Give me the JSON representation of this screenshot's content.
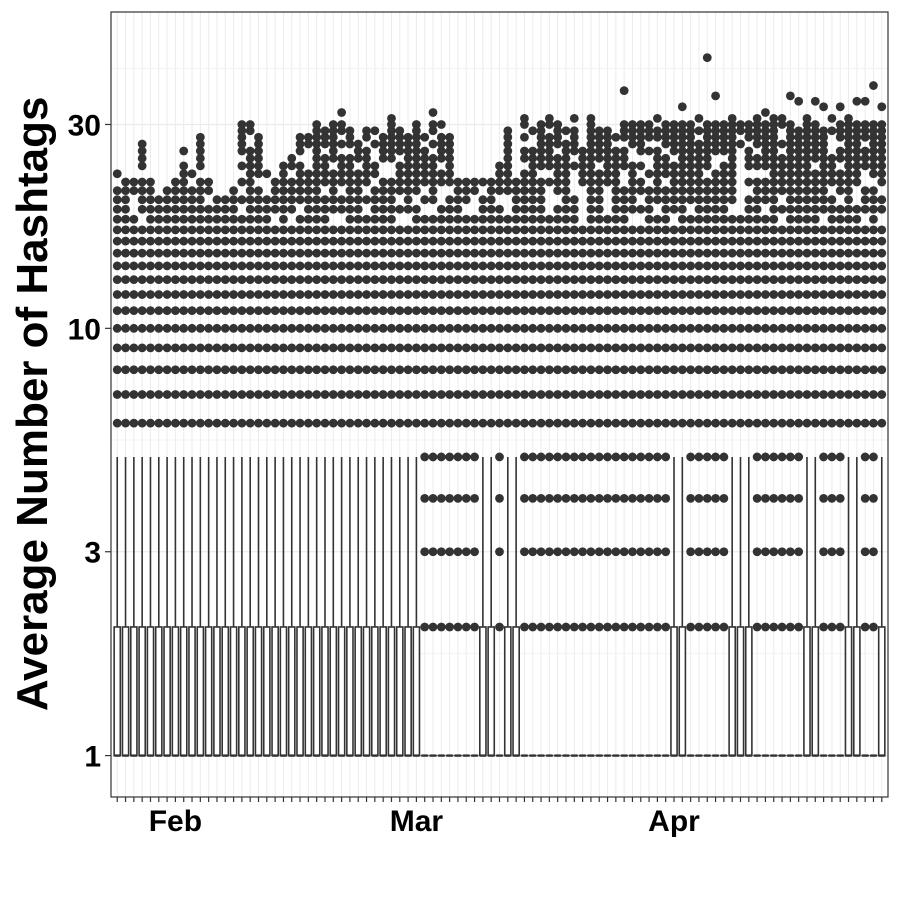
{
  "chart_data": {
    "type": "box",
    "title": "",
    "xlabel": "",
    "ylabel": "Average Number of Hashtags",
    "y_scale": "log10",
    "ylim": [
      0.8,
      55
    ],
    "yticks": [
      {
        "value": 1,
        "label": "1"
      },
      {
        "value": 3,
        "label": "3"
      },
      {
        "value": 10,
        "label": "10"
      },
      {
        "value": 30,
        "label": "30"
      }
    ],
    "x_start": "2020-01-21",
    "x_end": "2020-04-22",
    "xticks": [
      {
        "date": "2020-02-01",
        "label": "Feb"
      },
      {
        "date": "2020-03-01",
        "label": "Mar"
      },
      {
        "date": "2020-04-01",
        "label": "Apr"
      }
    ],
    "grid": true,
    "legend": "none",
    "colors": {
      "points": "#333333",
      "box": "#333333",
      "grid_major": "#ebebeb",
      "grid_minor": "#f2f2f2",
      "panel_border": "#333333"
    },
    "box_summary": {
      "period_1": {
        "dates": [
          "2020-01-21",
          "2020-02-26"
        ],
        "q1": 1,
        "median": 1,
        "q3": 2,
        "whisker_low": 1,
        "whisker_high": 5,
        "outlier_levels": [
          6,
          7,
          8,
          9,
          10,
          11,
          12,
          13,
          14,
          15,
          16,
          17,
          18,
          19,
          20,
          21,
          22,
          23,
          24,
          25,
          26,
          27,
          28,
          29,
          30
        ]
      },
      "period_2": {
        "dates": [
          "2020-02-27",
          "2020-04-22"
        ],
        "q1": 1,
        "median": 1,
        "q3": 1,
        "whisker_low": 1,
        "whisker_high": 1,
        "outlier_levels": [
          2,
          3,
          4,
          5,
          6,
          7,
          8,
          9,
          10,
          11,
          12,
          13,
          14,
          15,
          16,
          17,
          18,
          19,
          20,
          21,
          22,
          23,
          24,
          25,
          26,
          27,
          28,
          29,
          30
        ]
      },
      "exception_dates": [
        "2020-03-05",
        "2020-03-06",
        "2020-03-08",
        "2020-03-09",
        "2020-03-28",
        "2020-03-29",
        "2020-04-04",
        "2020-04-05",
        "2020-04-06",
        "2020-04-13",
        "2020-04-14",
        "2020-04-18",
        "2020-04-19",
        "2020-04-22"
      ],
      "exception_box": {
        "q1": 1,
        "q3": 2,
        "whisker_high": 5
      }
    },
    "max_daily_outlier": [
      23,
      22,
      22,
      27,
      22,
      20,
      21,
      22,
      26,
      23,
      28,
      22,
      20,
      20,
      21,
      30,
      30,
      28,
      23,
      22,
      24,
      25,
      28,
      28,
      30,
      29,
      30,
      32,
      29,
      27,
      29,
      29,
      28,
      31,
      29,
      28,
      30,
      28,
      32,
      30,
      28,
      22,
      22,
      22,
      22,
      22,
      24,
      29,
      22,
      31,
      29,
      30,
      31,
      30,
      29,
      31,
      26,
      31,
      29,
      29,
      28,
      36,
      30,
      30,
      30,
      31,
      30,
      30,
      33,
      30,
      31,
      43,
      35,
      30,
      31,
      30,
      30,
      31,
      32,
      31,
      31,
      35,
      34,
      31,
      34,
      33,
      31,
      33,
      31,
      34,
      34,
      37,
      33
    ]
  }
}
